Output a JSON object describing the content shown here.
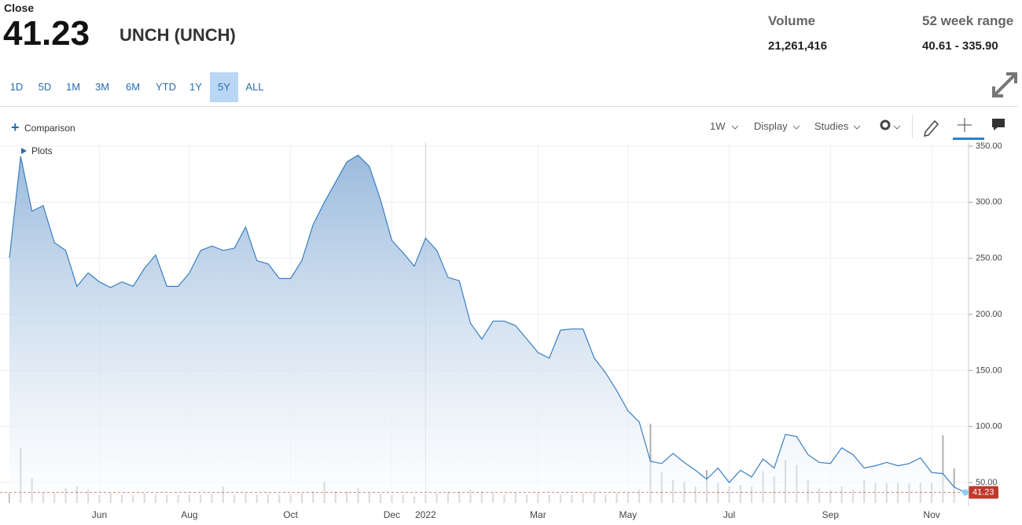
{
  "header": {
    "close_label": "Close",
    "close_value": "41.23",
    "name": "UNCH (UNCH)",
    "volume_label": "Volume",
    "volume_value": "21,261,416",
    "range_label": "52 week range",
    "range_value": "40.61 - 335.90"
  },
  "ranges": [
    "1D",
    "5D",
    "1M",
    "3M",
    "6M",
    "YTD",
    "1Y",
    "5Y",
    "ALL"
  ],
  "active_range_index": 7,
  "toolbar": {
    "comparison": "Comparison",
    "interval": "1W",
    "display": "Display",
    "studies": "Studies",
    "plots": "Plots"
  },
  "chart_data": {
    "type": "area",
    "categories": [
      null,
      null,
      null,
      null,
      null,
      null,
      null,
      null,
      "Jun",
      null,
      null,
      null,
      null,
      null,
      null,
      null,
      "Aug",
      null,
      null,
      null,
      null,
      null,
      null,
      null,
      null,
      "Oct",
      null,
      null,
      null,
      null,
      null,
      null,
      null,
      null,
      "Dec",
      null,
      null,
      "2022",
      null,
      null,
      null,
      null,
      null,
      null,
      null,
      null,
      null,
      "Mar",
      null,
      null,
      null,
      null,
      null,
      null,
      null,
      "May",
      null,
      null,
      null,
      null,
      null,
      null,
      null,
      null,
      "Jul",
      null,
      null,
      null,
      null,
      null,
      null,
      null,
      null,
      "Sep",
      null,
      null,
      null,
      null,
      null,
      null,
      null,
      null,
      "Nov",
      null,
      null,
      null
    ],
    "values": [
      250.5,
      341,
      292,
      297,
      264,
      257,
      225,
      237,
      229,
      224,
      229,
      225,
      241,
      253,
      225,
      225,
      237,
      257,
      261,
      257,
      259,
      278,
      248,
      245,
      232,
      232,
      248,
      280,
      300,
      318,
      336,
      342,
      332,
      302,
      266,
      255,
      243,
      268,
      257,
      233,
      230,
      192,
      178,
      194,
      194,
      190,
      178,
      166,
      161,
      186,
      187,
      187,
      161,
      148,
      132,
      114,
      104,
      69,
      67,
      76,
      68,
      61,
      53,
      63,
      50,
      61,
      55,
      71,
      63,
      93,
      91,
      75,
      68,
      67,
      81,
      75,
      63,
      65,
      68,
      65,
      67,
      72,
      59,
      58,
      46,
      41.23
    ],
    "color": "#3a7fc1",
    "volume": {
      "values": [
        6,
        33,
        15,
        6,
        6,
        9,
        10,
        8,
        5,
        6,
        5,
        5,
        6,
        5,
        5,
        5,
        5,
        5,
        6,
        10,
        5,
        6,
        5,
        5,
        5,
        5,
        6,
        7,
        13,
        7,
        7,
        9,
        6,
        6,
        5,
        5,
        4,
        5,
        6,
        7,
        7,
        8,
        7,
        6,
        5,
        6,
        5,
        6,
        5,
        5,
        5,
        6,
        6,
        5,
        6,
        6,
        8,
        48,
        19,
        14,
        13,
        10,
        20,
        12,
        10,
        11,
        10,
        19,
        16,
        26,
        23,
        14,
        9,
        8,
        10,
        8,
        14,
        12,
        12,
        12,
        12,
        12,
        12,
        41,
        21,
        0
      ],
      "color": "#b0b0b0"
    },
    "ylim": [
      31.8,
      353.5
    ],
    "yticks": [
      {
        "value": 50,
        "label": "50.00"
      },
      {
        "value": 100,
        "label": "100.00"
      },
      {
        "value": 150,
        "label": "150.00"
      },
      {
        "value": 200,
        "label": "200.00"
      },
      {
        "value": 250,
        "label": "250.00"
      },
      {
        "value": 300,
        "label": "300.00"
      },
      {
        "value": 350,
        "label": "350.00"
      }
    ],
    "grid": true,
    "last_color": "#c0392b"
  }
}
